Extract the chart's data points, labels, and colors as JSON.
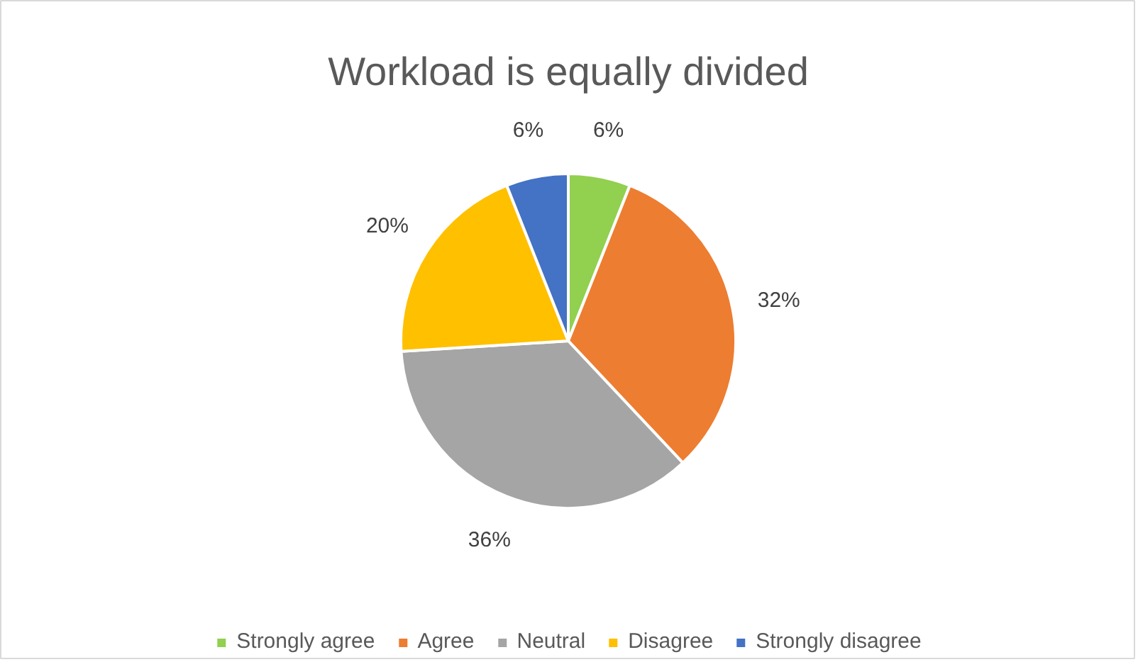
{
  "chart_data": {
    "type": "pie",
    "title": "Workload is equally divided",
    "categories": [
      "Strongly agree",
      "Agree",
      "Neutral",
      "Disagree",
      "Strongly disagree"
    ],
    "values": [
      6,
      32,
      36,
      20,
      6
    ],
    "colors": [
      "#92d050",
      "#ed7d31",
      "#a5a5a5",
      "#ffc000",
      "#4472c4"
    ],
    "value_labels": [
      "6%",
      "32%",
      "36%",
      "20%",
      "6%"
    ],
    "legend": "bottom"
  }
}
